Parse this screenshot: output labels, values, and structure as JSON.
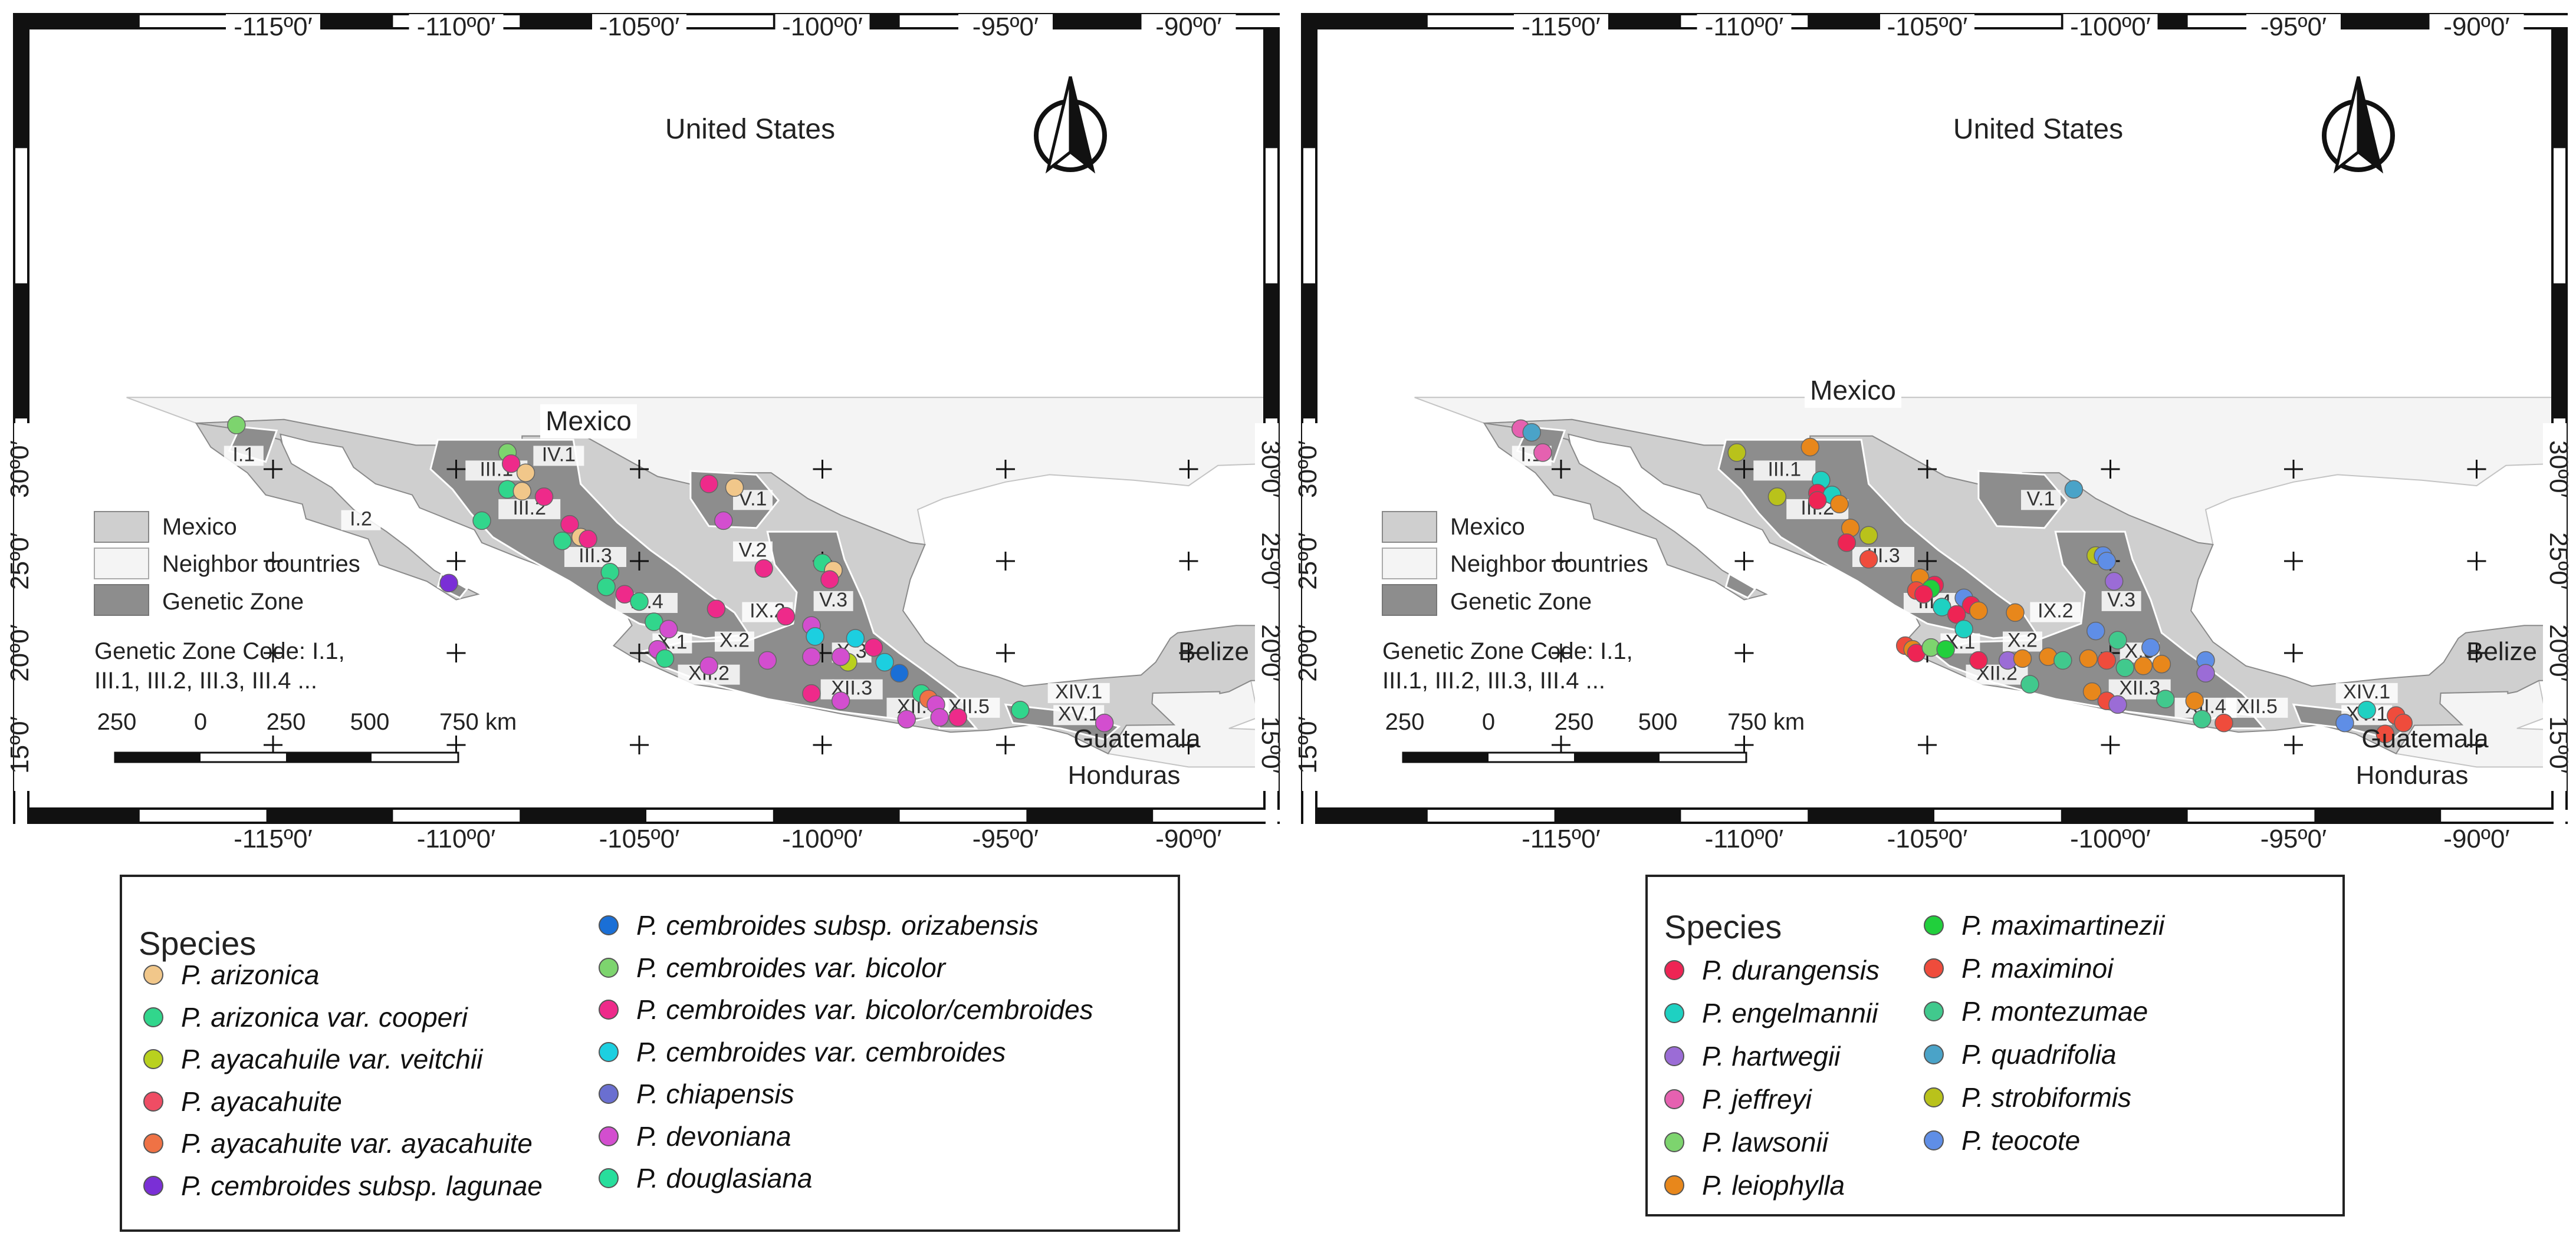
{
  "maps": [
    {
      "id": "left",
      "top_ticks": [
        "-115º0′",
        "-110º0′",
        "-105º0′",
        "-100º0′",
        "-95º0′",
        "-90º0′"
      ],
      "bottom_ticks": [
        "-115º0′",
        "-110º0′",
        "-105º0′",
        "-100º0′",
        "-95º0′",
        "-90º0′"
      ],
      "left_ticks": [
        "30º0′",
        "25º0′",
        "20º0′",
        "15º0′"
      ],
      "right_ticks": [
        "30º0′",
        "25º0′",
        "20º0′",
        "15º0′"
      ],
      "country_labels": {
        "us": "United States",
        "mexico": "Mexico",
        "belize": "Belize",
        "guatemala": "Guatemala",
        "honduras": "Honduras"
      },
      "map_legend": {
        "mexico": "Mexico",
        "neighbor": "Neighbor countries",
        "genetic_zone": "Genetic Zone"
      },
      "zone_code_note": [
        "Genetic Zone Code: I.1,",
        "III.1, III.2, III.3, III.4 ..."
      ],
      "scale_labels": [
        "250",
        "0",
        "250",
        "500",
        "750 km"
      ],
      "zone_labels": [
        "I.1",
        "I.2",
        "III.1",
        "III.2",
        "III.3",
        "III.4",
        "IV.1",
        "V.1",
        "V.2",
        "V.3",
        "IX.2",
        "X.1",
        "X.2",
        "X.3",
        "XII.2",
        "XII.3",
        "XII.4",
        "XII.5",
        "XIV.1",
        "XV.1"
      ],
      "points": [
        {
          "lon": -116.0,
          "lat": 32.4,
          "color": "#7dd46e"
        },
        {
          "lon": -108.6,
          "lat": 30.9,
          "color": "#7dd46e"
        },
        {
          "lon": -108.5,
          "lat": 30.3,
          "color": "#ee2a8a"
        },
        {
          "lon": -108.1,
          "lat": 29.8,
          "color": "#f1c78a"
        },
        {
          "lon": -108.6,
          "lat": 28.9,
          "color": "#31d68c"
        },
        {
          "lon": -108.2,
          "lat": 28.8,
          "color": "#f1c78a"
        },
        {
          "lon": -107.6,
          "lat": 28.5,
          "color": "#ee2a8a"
        },
        {
          "lon": -109.3,
          "lat": 27.2,
          "color": "#31d68c"
        },
        {
          "lon": -106.9,
          "lat": 27.0,
          "color": "#ee2a8a"
        },
        {
          "lon": -107.1,
          "lat": 26.1,
          "color": "#31d68c"
        },
        {
          "lon": -106.6,
          "lat": 26.3,
          "color": "#f1c78a"
        },
        {
          "lon": -106.4,
          "lat": 26.2,
          "color": "#ee2a8a"
        },
        {
          "lon": -103.1,
          "lat": 29.2,
          "color": "#ee2a8a"
        },
        {
          "lon": -102.4,
          "lat": 29.0,
          "color": "#f1c78a"
        },
        {
          "lon": -102.7,
          "lat": 27.2,
          "color": "#d34ecf"
        },
        {
          "lon": -105.8,
          "lat": 24.4,
          "color": "#31d68c"
        },
        {
          "lon": -105.9,
          "lat": 23.6,
          "color": "#31d68c"
        },
        {
          "lon": -105.4,
          "lat": 23.2,
          "color": "#ee2a8a"
        },
        {
          "lon": -105.0,
          "lat": 22.8,
          "color": "#31d68c"
        },
        {
          "lon": -104.6,
          "lat": 21.7,
          "color": "#31d68c"
        },
        {
          "lon": -104.2,
          "lat": 21.3,
          "color": "#d34ecf"
        },
        {
          "lon": -102.9,
          "lat": 22.4,
          "color": "#ee2a8a"
        },
        {
          "lon": -101.6,
          "lat": 24.6,
          "color": "#ee2a8a"
        },
        {
          "lon": -100.0,
          "lat": 24.9,
          "color": "#31d68c"
        },
        {
          "lon": -99.7,
          "lat": 24.5,
          "color": "#f1c78a"
        },
        {
          "lon": -99.8,
          "lat": 24.0,
          "color": "#ee2a8a"
        },
        {
          "lon": -101.0,
          "lat": 22.0,
          "color": "#ee2a8a"
        },
        {
          "lon": -100.3,
          "lat": 21.5,
          "color": "#d34ecf"
        },
        {
          "lon": -100.2,
          "lat": 20.9,
          "color": "#1ccfe0"
        },
        {
          "lon": -99.1,
          "lat": 20.8,
          "color": "#1ccfe0"
        },
        {
          "lon": -98.6,
          "lat": 20.3,
          "color": "#ee2a8a"
        },
        {
          "lon": -98.3,
          "lat": 19.5,
          "color": "#1ccfe0"
        },
        {
          "lon": -97.9,
          "lat": 18.9,
          "color": "#1a6fd6"
        },
        {
          "lon": -104.5,
          "lat": 20.2,
          "color": "#d34ecf"
        },
        {
          "lon": -104.3,
          "lat": 19.7,
          "color": "#31d68c"
        },
        {
          "lon": -103.1,
          "lat": 19.3,
          "color": "#d34ecf"
        },
        {
          "lon": -101.5,
          "lat": 19.6,
          "color": "#d34ecf"
        },
        {
          "lon": -100.3,
          "lat": 19.8,
          "color": "#d34ecf"
        },
        {
          "lon": -99.3,
          "lat": 19.5,
          "color": "#b9d11e"
        },
        {
          "lon": -99.5,
          "lat": 19.8,
          "color": "#d34ecf"
        },
        {
          "lon": -100.3,
          "lat": 17.8,
          "color": "#ee2a8a"
        },
        {
          "lon": -99.5,
          "lat": 17.4,
          "color": "#d34ecf"
        },
        {
          "lon": -97.3,
          "lat": 17.8,
          "color": "#31d68c"
        },
        {
          "lon": -97.1,
          "lat": 17.5,
          "color": "#ef7245"
        },
        {
          "lon": -96.9,
          "lat": 17.2,
          "color": "#d34ecf"
        },
        {
          "lon": -97.7,
          "lat": 16.4,
          "color": "#d34ecf"
        },
        {
          "lon": -96.8,
          "lat": 16.5,
          "color": "#d34ecf"
        },
        {
          "lon": -96.3,
          "lat": 16.5,
          "color": "#ee2a8a"
        },
        {
          "lon": -94.6,
          "lat": 16.9,
          "color": "#31d68c"
        },
        {
          "lon": -92.3,
          "lat": 16.2,
          "color": "#d34ecf"
        },
        {
          "lon": -110.2,
          "lat": 23.8,
          "color": "#7a2fd6"
        }
      ]
    },
    {
      "id": "right",
      "top_ticks": [
        "-115º0′",
        "-110º0′",
        "-105º0′",
        "-100º0′",
        "-95º0′",
        "-90º0′"
      ],
      "bottom_ticks": [
        "-115º0′",
        "-110º0′",
        "-105º0′",
        "-100º0′",
        "-95º0′",
        "-90º0′"
      ],
      "left_ticks": [
        "30º0′",
        "25º0′",
        "20º0′",
        "15º0′"
      ],
      "right_ticks": [
        "30º0′",
        "25º0′",
        "20º0′",
        "15º0′"
      ],
      "country_labels": {
        "us": "United States",
        "mexico": "Mexico",
        "belize": "Belize",
        "guatemala": "Guatemala",
        "honduras": "Honduras"
      },
      "map_legend": {
        "mexico": "Mexico",
        "neighbor": "Neighbor countries",
        "genetic_zone": "Genetic Zone"
      },
      "zone_code_note": [
        "Genetic Zone Code: I.1,",
        "III.1, III.2, III.3, III.4 ..."
      ],
      "scale_labels": [
        "250",
        "0",
        "250",
        "500",
        "750 km"
      ],
      "zone_labels": [
        "I.1",
        "III.1",
        "III.2",
        "III.3",
        "III.4",
        "V.1",
        "V.3",
        "IX.2",
        "X.1",
        "X.2",
        "X.3",
        "XII.2",
        "XII.3",
        "XII.4",
        "XII.5",
        "XIV.1",
        "XV.1"
      ],
      "points": [
        {
          "lon": -116.1,
          "lat": 32.2,
          "color": "#e561b0"
        },
        {
          "lon": -115.8,
          "lat": 32.0,
          "color": "#4aa3c8"
        },
        {
          "lon": -115.5,
          "lat": 30.9,
          "color": "#e561b0"
        },
        {
          "lon": -110.2,
          "lat": 30.9,
          "color": "#b9c21b"
        },
        {
          "lon": -108.2,
          "lat": 31.2,
          "color": "#e8871b"
        },
        {
          "lon": -107.9,
          "lat": 29.4,
          "color": "#1ed1c2"
        },
        {
          "lon": -108.0,
          "lat": 28.7,
          "color": "#ee2454"
        },
        {
          "lon": -107.6,
          "lat": 28.6,
          "color": "#1ed1c2"
        },
        {
          "lon": -109.1,
          "lat": 28.5,
          "color": "#b9c21b"
        },
        {
          "lon": -108.0,
          "lat": 28.3,
          "color": "#ee2454"
        },
        {
          "lon": -107.4,
          "lat": 28.1,
          "color": "#e8871b"
        },
        {
          "lon": -107.1,
          "lat": 26.8,
          "color": "#e8871b"
        },
        {
          "lon": -106.6,
          "lat": 26.4,
          "color": "#b9c21b"
        },
        {
          "lon": -107.2,
          "lat": 26.0,
          "color": "#ee2454"
        },
        {
          "lon": -106.6,
          "lat": 25.1,
          "color": "#ef4c3c"
        },
        {
          "lon": -101.0,
          "lat": 28.9,
          "color": "#4aa3c8"
        },
        {
          "lon": -100.4,
          "lat": 25.3,
          "color": "#b9c21b"
        },
        {
          "lon": -100.2,
          "lat": 25.3,
          "color": "#5f8ee6"
        },
        {
          "lon": -100.1,
          "lat": 25.0,
          "color": "#5f8ee6"
        },
        {
          "lon": -99.9,
          "lat": 23.9,
          "color": "#9b6cd6"
        },
        {
          "lon": -105.2,
          "lat": 24.1,
          "color": "#e8871b"
        },
        {
          "lon": -104.8,
          "lat": 23.7,
          "color": "#ee2454"
        },
        {
          "lon": -104.9,
          "lat": 23.5,
          "color": "#21cf3c"
        },
        {
          "lon": -105.3,
          "lat": 23.4,
          "color": "#ef4c3c"
        },
        {
          "lon": -105.1,
          "lat": 23.2,
          "color": "#ee2454"
        },
        {
          "lon": -104.0,
          "lat": 23.0,
          "color": "#5f8ee6"
        },
        {
          "lon": -103.8,
          "lat": 22.6,
          "color": "#ee2454"
        },
        {
          "lon": -104.6,
          "lat": 22.5,
          "color": "#1ed1c2"
        },
        {
          "lon": -103.6,
          "lat": 22.3,
          "color": "#e8871b"
        },
        {
          "lon": -104.2,
          "lat": 22.1,
          "color": "#ee2454"
        },
        {
          "lon": -104.0,
          "lat": 21.3,
          "color": "#1ed1c2"
        },
        {
          "lon": -102.6,
          "lat": 22.2,
          "color": "#e8871b"
        },
        {
          "lon": -100.4,
          "lat": 21.2,
          "color": "#5f8ee6"
        },
        {
          "lon": -99.8,
          "lat": 20.7,
          "color": "#41c98d"
        },
        {
          "lon": -98.9,
          "lat": 20.3,
          "color": "#5f8ee6"
        },
        {
          "lon": -105.6,
          "lat": 20.4,
          "color": "#ef4c3c"
        },
        {
          "lon": -105.4,
          "lat": 20.2,
          "color": "#e8871b"
        },
        {
          "lon": -105.3,
          "lat": 20.0,
          "color": "#ee2454"
        },
        {
          "lon": -104.9,
          "lat": 20.3,
          "color": "#7dd46e"
        },
        {
          "lon": -104.5,
          "lat": 20.2,
          "color": "#21cf3c"
        },
        {
          "lon": -103.6,
          "lat": 19.6,
          "color": "#ee2454"
        },
        {
          "lon": -102.8,
          "lat": 19.6,
          "color": "#9b6cd6"
        },
        {
          "lon": -102.4,
          "lat": 19.7,
          "color": "#e8871b"
        },
        {
          "lon": -101.7,
          "lat": 19.8,
          "color": "#e8871b"
        },
        {
          "lon": -101.3,
          "lat": 19.6,
          "color": "#41c98d"
        },
        {
          "lon": -100.6,
          "lat": 19.7,
          "color": "#e8871b"
        },
        {
          "lon": -100.1,
          "lat": 19.6,
          "color": "#ef4c3c"
        },
        {
          "lon": -99.6,
          "lat": 19.2,
          "color": "#41c98d"
        },
        {
          "lon": -99.1,
          "lat": 19.3,
          "color": "#e8871b"
        },
        {
          "lon": -98.6,
          "lat": 19.4,
          "color": "#e8871b"
        },
        {
          "lon": -97.4,
          "lat": 19.6,
          "color": "#5f8ee6"
        },
        {
          "lon": -97.4,
          "lat": 18.9,
          "color": "#9b6cd6"
        },
        {
          "lon": -102.2,
          "lat": 18.3,
          "color": "#41c98d"
        },
        {
          "lon": -100.5,
          "lat": 17.9,
          "color": "#e8871b"
        },
        {
          "lon": -100.1,
          "lat": 17.4,
          "color": "#ef4c3c"
        },
        {
          "lon": -99.8,
          "lat": 17.2,
          "color": "#9b6cd6"
        },
        {
          "lon": -98.5,
          "lat": 17.5,
          "color": "#41c98d"
        },
        {
          "lon": -97.7,
          "lat": 17.4,
          "color": "#e8871b"
        },
        {
          "lon": -97.5,
          "lat": 16.4,
          "color": "#41c98d"
        },
        {
          "lon": -96.9,
          "lat": 16.2,
          "color": "#ef4c3c"
        },
        {
          "lon": -93.0,
          "lat": 16.9,
          "color": "#1ed1c2"
        },
        {
          "lon": -92.2,
          "lat": 16.6,
          "color": "#ef4c3c"
        },
        {
          "lon": -92.0,
          "lat": 16.2,
          "color": "#ef4c3c"
        },
        {
          "lon": -92.5,
          "lat": 15.6,
          "color": "#ef4c3c"
        },
        {
          "lon": -93.6,
          "lat": 16.2,
          "color": "#5f8ee6"
        }
      ]
    }
  ],
  "legends": [
    {
      "id": "left",
      "title": "Species",
      "items": [
        {
          "label": "P. arizonica",
          "color": "#f1c78a"
        },
        {
          "label": "P. arizonica var. cooperi",
          "color": "#31d68c"
        },
        {
          "label": "P. ayacahuile var. veitchii",
          "color": "#b9d11e"
        },
        {
          "label": "P. ayacahuite",
          "color": "#ef4d64"
        },
        {
          "label": "P. ayacahuite var. ayacahuite",
          "color": "#ef7245"
        },
        {
          "label": "P. cembroides subsp. lagunae",
          "color": "#7a2fd6"
        },
        {
          "label": "P. cembroides subsp. orizabensis",
          "color": "#1a6fd6"
        },
        {
          "label": "P. cembroides var. bicolor",
          "color": "#7dd46e"
        },
        {
          "label": "P. cembroides var. bicolor/cembroides",
          "color": "#ee2a8a"
        },
        {
          "label": "P. cembroides var. cembroides",
          "color": "#1ccfe0"
        },
        {
          "label": "P. chiapensis",
          "color": "#6a6fd0"
        },
        {
          "label": "P. devoniana",
          "color": "#d34ecf"
        },
        {
          "label": "P. douglasiana",
          "color": "#27de9c"
        }
      ]
    },
    {
      "id": "right",
      "title": "Species",
      "items": [
        {
          "label": "P. durangensis",
          "color": "#ee2454"
        },
        {
          "label": "P. engelmannii",
          "color": "#1ed1c2"
        },
        {
          "label": "P. hartwegii",
          "color": "#9b6cd6"
        },
        {
          "label": "P. jeffreyi",
          "color": "#e561b0"
        },
        {
          "label": "P. lawsonii",
          "color": "#7dd46e"
        },
        {
          "label": "P. leiophylla",
          "color": "#e8871b"
        },
        {
          "label": "P. maximartinezii",
          "color": "#21cf3c"
        },
        {
          "label": "P. maximinoi",
          "color": "#ef4c3c"
        },
        {
          "label": "P. montezumae",
          "color": "#41c98d"
        },
        {
          "label": "P. quadrifolia",
          "color": "#4aa3c8"
        },
        {
          "label": "P. strobiformis",
          "color": "#b9c21b"
        },
        {
          "label": "P. teocote",
          "color": "#5f8ee6"
        }
      ]
    }
  ]
}
